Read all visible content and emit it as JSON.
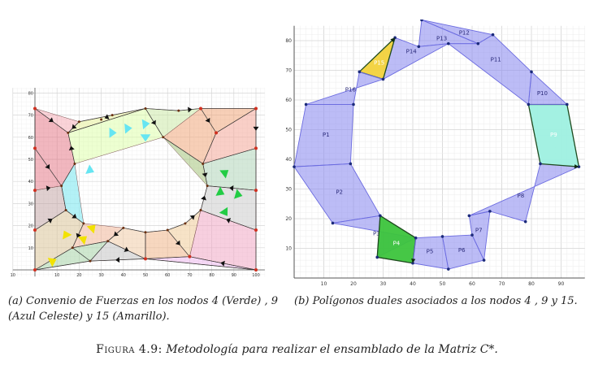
{
  "panel_a": {
    "x_ticks": [
      "10",
      "10",
      "20",
      "30",
      "40",
      "50",
      "60",
      "70",
      "80",
      "90",
      "100"
    ],
    "y_ticks": [
      "10",
      "20",
      "30",
      "40",
      "50",
      "60",
      "70",
      "80"
    ],
    "force_colors": {
      "node4": "#22cc44",
      "node9": "#66e5f2",
      "node15": "#f2e200"
    }
  },
  "panel_b": {
    "x_ticks": [
      "10",
      "20",
      "30",
      "40",
      "50",
      "60",
      "70",
      "80",
      "90"
    ],
    "y_ticks": [
      "10",
      "20",
      "30",
      "40",
      "50",
      "60",
      "70",
      "80"
    ],
    "polygon_labels": [
      "P1",
      "P2",
      "P3",
      "P4",
      "P5",
      "P6",
      "P7",
      "P8",
      "P9",
      "P10",
      "P11",
      "P12",
      "P13",
      "P14",
      "P15",
      "P16"
    ],
    "colors": {
      "ring": "#8f8ff0",
      "highlight_p4": "#3cc43c",
      "highlight_p9": "#9ef0e0",
      "highlight_p15": "#f2d23c"
    }
  },
  "captions": {
    "a": "(a) Convenio de Fuerzas en los nodos 4 (Verde) , 9 (Azul Celeste) y 15 (Amarillo).",
    "b": "(b) Polígonos duales asociados a los nodos 4 , 9 y 15.",
    "figure_label": "Figura 4.9:",
    "figure_text": "Metodología para realizar el ensamblado de la Matriz C*."
  }
}
